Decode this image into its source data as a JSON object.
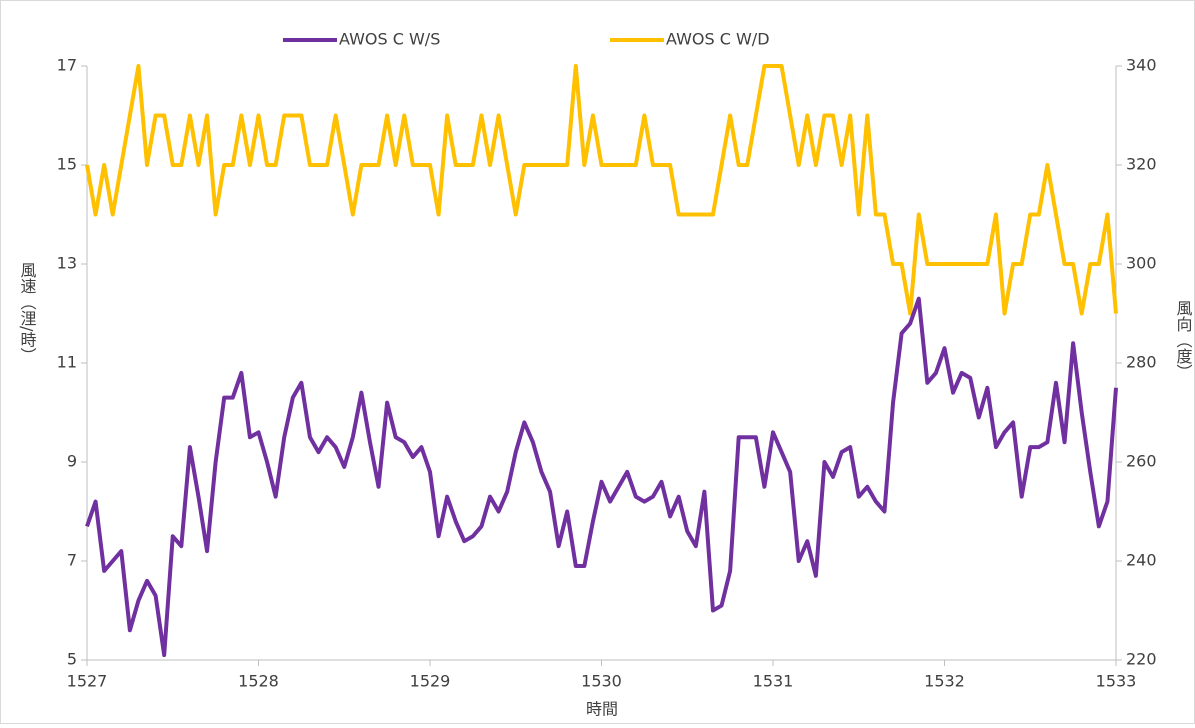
{
  "chart_data": {
    "type": "line",
    "x_label": "時間",
    "y_label": "風速（浬/時）",
    "y2_label": "風向（度）",
    "x": [
      1527,
      1527.05,
      1527.1,
      1527.15,
      1527.2,
      1527.25,
      1527.3,
      1527.35,
      1527.4,
      1527.45,
      1527.5,
      1527.55,
      1527.6,
      1527.65,
      1527.7,
      1527.75,
      1527.8,
      1527.85,
      1527.9,
      1527.95,
      1528,
      1528.05,
      1528.1,
      1528.15,
      1528.2,
      1528.25,
      1528.3,
      1528.35,
      1528.4,
      1528.45,
      1528.5,
      1528.55,
      1528.6,
      1528.65,
      1528.7,
      1528.75,
      1528.8,
      1528.85,
      1528.9,
      1528.95,
      1529,
      1529.05,
      1529.1,
      1529.15,
      1529.2,
      1529.25,
      1529.3,
      1529.35,
      1529.4,
      1529.45,
      1529.5,
      1529.55,
      1529.6,
      1529.65,
      1529.7,
      1529.75,
      1529.8,
      1529.85,
      1529.9,
      1529.95,
      1530,
      1530.05,
      1530.1,
      1530.15,
      1530.2,
      1530.25,
      1530.3,
      1530.35,
      1530.4,
      1530.45,
      1530.5,
      1530.55,
      1530.6,
      1530.65,
      1530.7,
      1530.75,
      1530.8,
      1530.85,
      1530.9,
      1530.95,
      1531,
      1531.05,
      1531.1,
      1531.15,
      1531.2,
      1531.25,
      1531.3,
      1531.35,
      1531.4,
      1531.45,
      1531.5,
      1531.55,
      1531.6,
      1531.65,
      1531.7,
      1531.75,
      1531.8,
      1531.85,
      1531.9,
      1531.95,
      1532,
      1532.05,
      1532.1,
      1532.15,
      1532.2,
      1532.25,
      1532.3,
      1532.35,
      1532.4,
      1532.45,
      1532.5,
      1532.55,
      1532.6,
      1532.65,
      1532.7,
      1532.75,
      1532.8,
      1532.85,
      1532.9,
      1532.95,
      1533
    ],
    "series": [
      {
        "name": "AWOS C W/S",
        "color": "#7030a0",
        "values": [
          7.7,
          8.2,
          6.8,
          7.0,
          7.2,
          5.6,
          6.2,
          6.6,
          6.3,
          5.1,
          7.5,
          7.3,
          9.3,
          8.3,
          7.2,
          9.0,
          10.3,
          10.3,
          10.8,
          9.5,
          9.6,
          9.0,
          8.3,
          9.5,
          10.3,
          10.6,
          9.5,
          9.2,
          9.5,
          9.3,
          8.9,
          9.5,
          10.4,
          9.4,
          8.5,
          10.2,
          9.5,
          9.4,
          9.1,
          9.3,
          8.8,
          7.5,
          8.3,
          7.8,
          7.4,
          7.5,
          7.7,
          8.3,
          8.0,
          8.4,
          9.2,
          9.8,
          9.4,
          8.8,
          8.4,
          7.3,
          8.0,
          6.9,
          6.9,
          7.8,
          8.6,
          8.2,
          8.5,
          8.8,
          8.3,
          8.2,
          8.3,
          8.6,
          7.9,
          8.3,
          7.6,
          7.3,
          8.4,
          6.0,
          6.1,
          6.8,
          9.5,
          9.5,
          9.5,
          8.5,
          9.6,
          9.2,
          8.8,
          7.0,
          7.4,
          6.7,
          9.0,
          8.7,
          9.2,
          9.3,
          8.3,
          8.5,
          8.2,
          8.0,
          10.2,
          11.6,
          11.8,
          12.3,
          10.6,
          10.8,
          11.3,
          10.4,
          10.8,
          10.7,
          9.9,
          10.5,
          9.3,
          9.6,
          9.8,
          8.3,
          9.3,
          9.3,
          9.4,
          10.6,
          9.4,
          11.4,
          10.0,
          8.8,
          7.7,
          8.2,
          10.5
        ]
      },
      {
        "name": "AWOS C W/D",
        "color": "#ffc000",
        "axis": "y2",
        "values": [
          320,
          310,
          320,
          310,
          320,
          330,
          340,
          320,
          330,
          330,
          320,
          320,
          330,
          320,
          330,
          310,
          320,
          320,
          330,
          320,
          330,
          320,
          320,
          330,
          330,
          330,
          320,
          320,
          320,
          330,
          320,
          310,
          320,
          320,
          320,
          330,
          320,
          330,
          320,
          320,
          320,
          310,
          330,
          320,
          320,
          320,
          330,
          320,
          330,
          320,
          310,
          320,
          320,
          320,
          320,
          320,
          320,
          340,
          320,
          330,
          320,
          320,
          320,
          320,
          320,
          330,
          320,
          320,
          320,
          310,
          310,
          310,
          310,
          310,
          320,
          330,
          320,
          320,
          330,
          340,
          340,
          340,
          330,
          320,
          330,
          320,
          330,
          330,
          320,
          330,
          310,
          330,
          310,
          310,
          300,
          300,
          290,
          310,
          300,
          300,
          300,
          300,
          300,
          300,
          300,
          300,
          310,
          290,
          300,
          300,
          310,
          310,
          320,
          310,
          300,
          300,
          290,
          300,
          300,
          310,
          290
        ]
      }
    ],
    "xlim": [
      1527,
      1533
    ],
    "xticks": [
      1527,
      1528,
      1529,
      1530,
      1531,
      1532,
      1533
    ],
    "ylim": [
      5,
      17
    ],
    "yticks": [
      5,
      7,
      9,
      11,
      13,
      15,
      17
    ],
    "y2lim": [
      220,
      340
    ],
    "y2ticks": [
      220,
      240,
      260,
      280,
      300,
      320,
      340
    ],
    "legend": "top"
  }
}
